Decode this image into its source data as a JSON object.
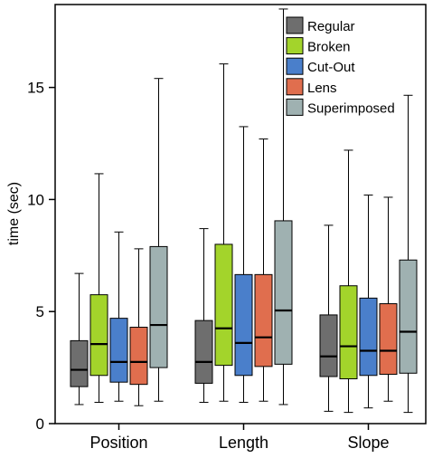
{
  "chart_data": {
    "type": "boxplot",
    "title": "",
    "xlabel": "",
    "ylabel": "time (sec)",
    "ylim": [
      0,
      18.7
    ],
    "yticks": [
      0,
      5,
      10,
      15
    ],
    "grid": false,
    "legend_position": "top-right",
    "categories": [
      "Position",
      "Length",
      "Slope"
    ],
    "series": [
      {
        "name": "Regular",
        "color": "#6e6e6e",
        "boxes": [
          {
            "min": 0.85,
            "q1": 1.65,
            "median": 2.4,
            "q3": 3.7,
            "max": 6.7
          },
          {
            "min": 0.95,
            "q1": 1.8,
            "median": 2.75,
            "q3": 4.6,
            "max": 8.7
          },
          {
            "min": 0.55,
            "q1": 2.1,
            "median": 3.0,
            "q3": 4.85,
            "max": 8.85
          }
        ]
      },
      {
        "name": "Broken",
        "color": "#a3d42b",
        "boxes": [
          {
            "min": 0.95,
            "q1": 2.15,
            "median": 3.55,
            "q3": 5.75,
            "max": 11.15
          },
          {
            "min": 1.0,
            "q1": 2.6,
            "median": 4.25,
            "q3": 8.0,
            "max": 16.05
          },
          {
            "min": 0.5,
            "q1": 2.0,
            "median": 3.45,
            "q3": 6.15,
            "max": 12.2
          }
        ]
      },
      {
        "name": "Cut-Out",
        "color": "#4a7fcb",
        "boxes": [
          {
            "min": 1.0,
            "q1": 1.85,
            "median": 2.75,
            "q3": 4.7,
            "max": 8.55
          },
          {
            "min": 0.95,
            "q1": 2.15,
            "median": 3.6,
            "q3": 6.65,
            "max": 13.25
          },
          {
            "min": 0.7,
            "q1": 2.15,
            "median": 3.25,
            "q3": 5.6,
            "max": 10.2
          }
        ]
      },
      {
        "name": "Lens",
        "color": "#e06e4e",
        "boxes": [
          {
            "min": 0.8,
            "q1": 1.75,
            "median": 2.75,
            "q3": 4.3,
            "max": 7.8
          },
          {
            "min": 1.0,
            "q1": 2.55,
            "median": 3.85,
            "q3": 6.65,
            "max": 12.7
          },
          {
            "min": 1.0,
            "q1": 2.2,
            "median": 3.25,
            "q3": 5.35,
            "max": 10.1
          }
        ]
      },
      {
        "name": "Superimposed",
        "color": "#9fb1b1",
        "boxes": [
          {
            "min": 1.0,
            "q1": 2.5,
            "median": 4.4,
            "q3": 7.9,
            "max": 15.4
          },
          {
            "min": 0.85,
            "q1": 2.65,
            "median": 5.05,
            "q3": 9.05,
            "max": 18.5
          },
          {
            "min": 0.5,
            "q1": 2.25,
            "median": 4.1,
            "q3": 7.3,
            "max": 14.65
          }
        ]
      }
    ]
  }
}
